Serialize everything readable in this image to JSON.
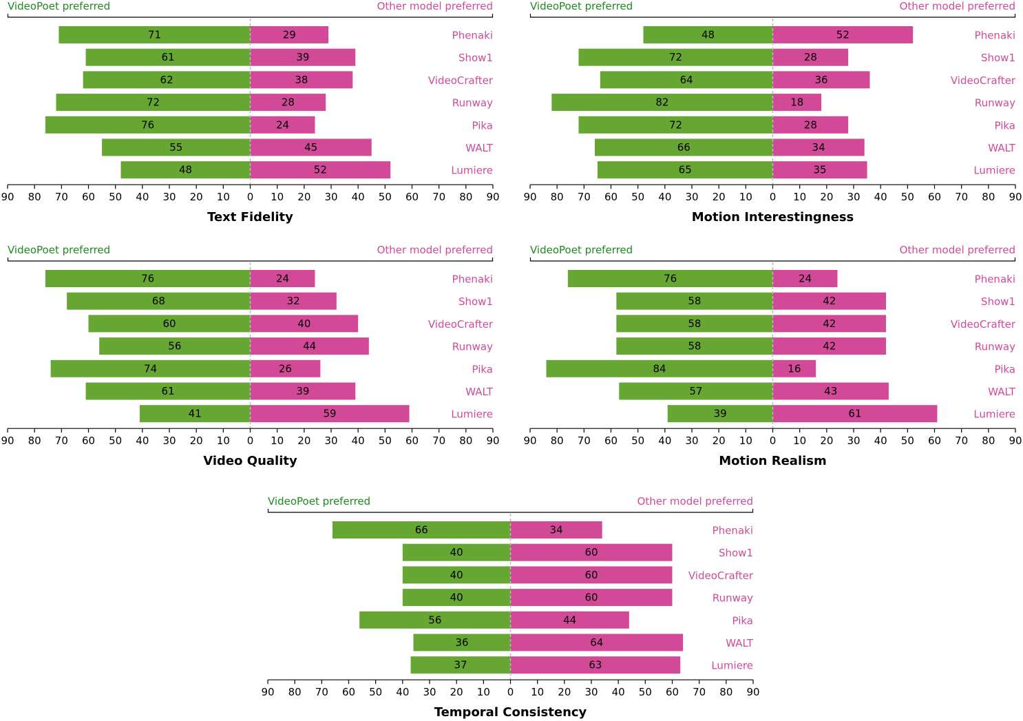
{
  "colors": {
    "videopoet": "#66a633",
    "other": "#d24a97",
    "left_text": "#1f8a1f",
    "right_text": "#d24a97",
    "axis": "#000000",
    "center_line": "#bbbbbb"
  },
  "chart_data": [
    {
      "type": "bar",
      "orientation": "horizontal-diverging",
      "title": "Text Fidelity",
      "left_label": "VideoPoet preferred",
      "right_label": "Other model preferred",
      "categories": [
        "Phenaki",
        "Show1",
        "VideoCrafter",
        "Runway",
        "Pika",
        "WALT",
        "Lumiere"
      ],
      "series": [
        {
          "name": "VideoPoet preferred",
          "values": [
            71,
            61,
            62,
            72,
            76,
            55,
            48
          ]
        },
        {
          "name": "Other model preferred",
          "values": [
            29,
            39,
            38,
            28,
            24,
            45,
            52
          ]
        }
      ],
      "xlim": [
        -90,
        90
      ],
      "ticks": [
        "90",
        "80",
        "70",
        "60",
        "50",
        "40",
        "30",
        "20",
        "10",
        "0",
        "10",
        "20",
        "30",
        "40",
        "50",
        "60",
        "70",
        "80",
        "90"
      ]
    },
    {
      "type": "bar",
      "orientation": "horizontal-diverging",
      "title": "Motion Interestingness",
      "left_label": "VideoPoet preferred",
      "right_label": "Other model preferred",
      "categories": [
        "Phenaki",
        "Show1",
        "VideoCrafter",
        "Runway",
        "Pika",
        "WALT",
        "Lumiere"
      ],
      "series": [
        {
          "name": "VideoPoet preferred",
          "values": [
            48,
            72,
            64,
            82,
            72,
            66,
            65
          ]
        },
        {
          "name": "Other model preferred",
          "values": [
            52,
            28,
            36,
            18,
            28,
            34,
            35
          ]
        }
      ],
      "xlim": [
        -90,
        90
      ],
      "ticks": [
        "90",
        "80",
        "70",
        "60",
        "50",
        "40",
        "30",
        "20",
        "10",
        "0",
        "10",
        "20",
        "30",
        "40",
        "50",
        "60",
        "70",
        "80",
        "90"
      ]
    },
    {
      "type": "bar",
      "orientation": "horizontal-diverging",
      "title": "Video Quality",
      "left_label": "VideoPoet preferred",
      "right_label": "Other model preferred",
      "categories": [
        "Phenaki",
        "Show1",
        "VideoCrafter",
        "Runway",
        "Pika",
        "WALT",
        "Lumiere"
      ],
      "series": [
        {
          "name": "VideoPoet preferred",
          "values": [
            76,
            68,
            60,
            56,
            74,
            61,
            41
          ]
        },
        {
          "name": "Other model preferred",
          "values": [
            24,
            32,
            40,
            44,
            26,
            39,
            59
          ]
        }
      ],
      "xlim": [
        -90,
        90
      ],
      "ticks": [
        "90",
        "80",
        "70",
        "60",
        "50",
        "40",
        "30",
        "20",
        "10",
        "0",
        "10",
        "20",
        "30",
        "40",
        "50",
        "60",
        "70",
        "80",
        "90"
      ]
    },
    {
      "type": "bar",
      "orientation": "horizontal-diverging",
      "title": "Motion Realism",
      "left_label": "VideoPoet preferred",
      "right_label": "Other model preferred",
      "categories": [
        "Phenaki",
        "Show1",
        "VideoCrafter",
        "Runway",
        "Pika",
        "WALT",
        "Lumiere"
      ],
      "series": [
        {
          "name": "VideoPoet preferred",
          "values": [
            76,
            58,
            58,
            58,
            84,
            57,
            39
          ]
        },
        {
          "name": "Other model preferred",
          "values": [
            24,
            42,
            42,
            42,
            16,
            43,
            61
          ]
        }
      ],
      "xlim": [
        -90,
        90
      ],
      "ticks": [
        "90",
        "80",
        "70",
        "60",
        "50",
        "40",
        "30",
        "20",
        "10",
        "0",
        "10",
        "20",
        "30",
        "40",
        "50",
        "60",
        "70",
        "80",
        "90"
      ]
    },
    {
      "type": "bar",
      "orientation": "horizontal-diverging",
      "title": "Temporal Consistency",
      "left_label": "VideoPoet preferred",
      "right_label": "Other model preferred",
      "categories": [
        "Phenaki",
        "Show1",
        "VideoCrafter",
        "Runway",
        "Pika",
        "WALT",
        "Lumiere"
      ],
      "series": [
        {
          "name": "VideoPoet preferred",
          "values": [
            66,
            40,
            40,
            40,
            56,
            36,
            37
          ]
        },
        {
          "name": "Other model preferred",
          "values": [
            34,
            60,
            60,
            60,
            44,
            64,
            63
          ]
        }
      ],
      "xlim": [
        -90,
        90
      ],
      "ticks": [
        "90",
        "80",
        "70",
        "60",
        "50",
        "40",
        "30",
        "20",
        "10",
        "0",
        "10",
        "20",
        "30",
        "40",
        "50",
        "60",
        "70",
        "80",
        "90"
      ]
    }
  ]
}
